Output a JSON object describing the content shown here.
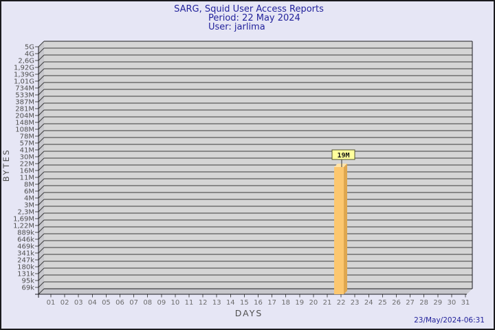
{
  "header": {
    "title": "SARG, Squid User Access Reports",
    "period": "Period: 22 May 2024",
    "user": "User: jarlima"
  },
  "axes": {
    "y_title": "BYTES",
    "x_title": "DAYS"
  },
  "footer": {
    "generated": "23/May/2024-06:31"
  },
  "chart_data": {
    "type": "bar",
    "title": "SARG, Squid User Access Reports",
    "subtitle": [
      "Period: 22 May 2024",
      "User: jarlima"
    ],
    "xlabel": "DAYS",
    "ylabel": "BYTES",
    "scale": "log",
    "grid": "horizontal",
    "legend": "none",
    "x_categories": [
      "01",
      "02",
      "03",
      "04",
      "05",
      "06",
      "07",
      "08",
      "09",
      "10",
      "11",
      "12",
      "13",
      "14",
      "15",
      "16",
      "17",
      "18",
      "19",
      "20",
      "21",
      "22",
      "23",
      "24",
      "25",
      "26",
      "27",
      "28",
      "29",
      "30",
      "31"
    ],
    "y_tick_labels": [
      "5G",
      "4G",
      "2,6G",
      "1,92G",
      "1,39G",
      "1,01G",
      "734M",
      "533M",
      "387M",
      "281M",
      "204M",
      "148M",
      "108M",
      "78M",
      "57M",
      "41M",
      "30M",
      "22M",
      "16M",
      "11M",
      "8M",
      "6M",
      "4M",
      "3M",
      "2,3M",
      "1,69M",
      "1,22M",
      "889k",
      "646k",
      "469k",
      "341k",
      "247k",
      "180k",
      "131k",
      "95k",
      "69k"
    ],
    "series": [
      {
        "name": "jarlima",
        "values": [
          0,
          0,
          0,
          0,
          0,
          0,
          0,
          0,
          0,
          0,
          0,
          0,
          0,
          0,
          0,
          0,
          0,
          0,
          0,
          0,
          0,
          19000000,
          0,
          0,
          0,
          0,
          0,
          0,
          0,
          0,
          0
        ]
      }
    ],
    "annotations": [
      {
        "day": "22",
        "label": "19M"
      }
    ]
  },
  "colors": {
    "background": "#E6E6F5",
    "frame": "#1A1A1E",
    "title_text": "#22229B",
    "timestamp_text": "#22229B",
    "plot_bg": "#D5D5D5",
    "wall": "#C7C7CC",
    "grid": "#3C3C3C",
    "axis_text": "#4F4F4F",
    "day_text": "#6B6B6B",
    "bar_front": "#FCC76F",
    "bar_side": "#DFA74F",
    "bar_top": "#FFE3A9",
    "callout_bg": "#FFFF9D",
    "callout_border": "#54542E",
    "leader": "#333333"
  }
}
